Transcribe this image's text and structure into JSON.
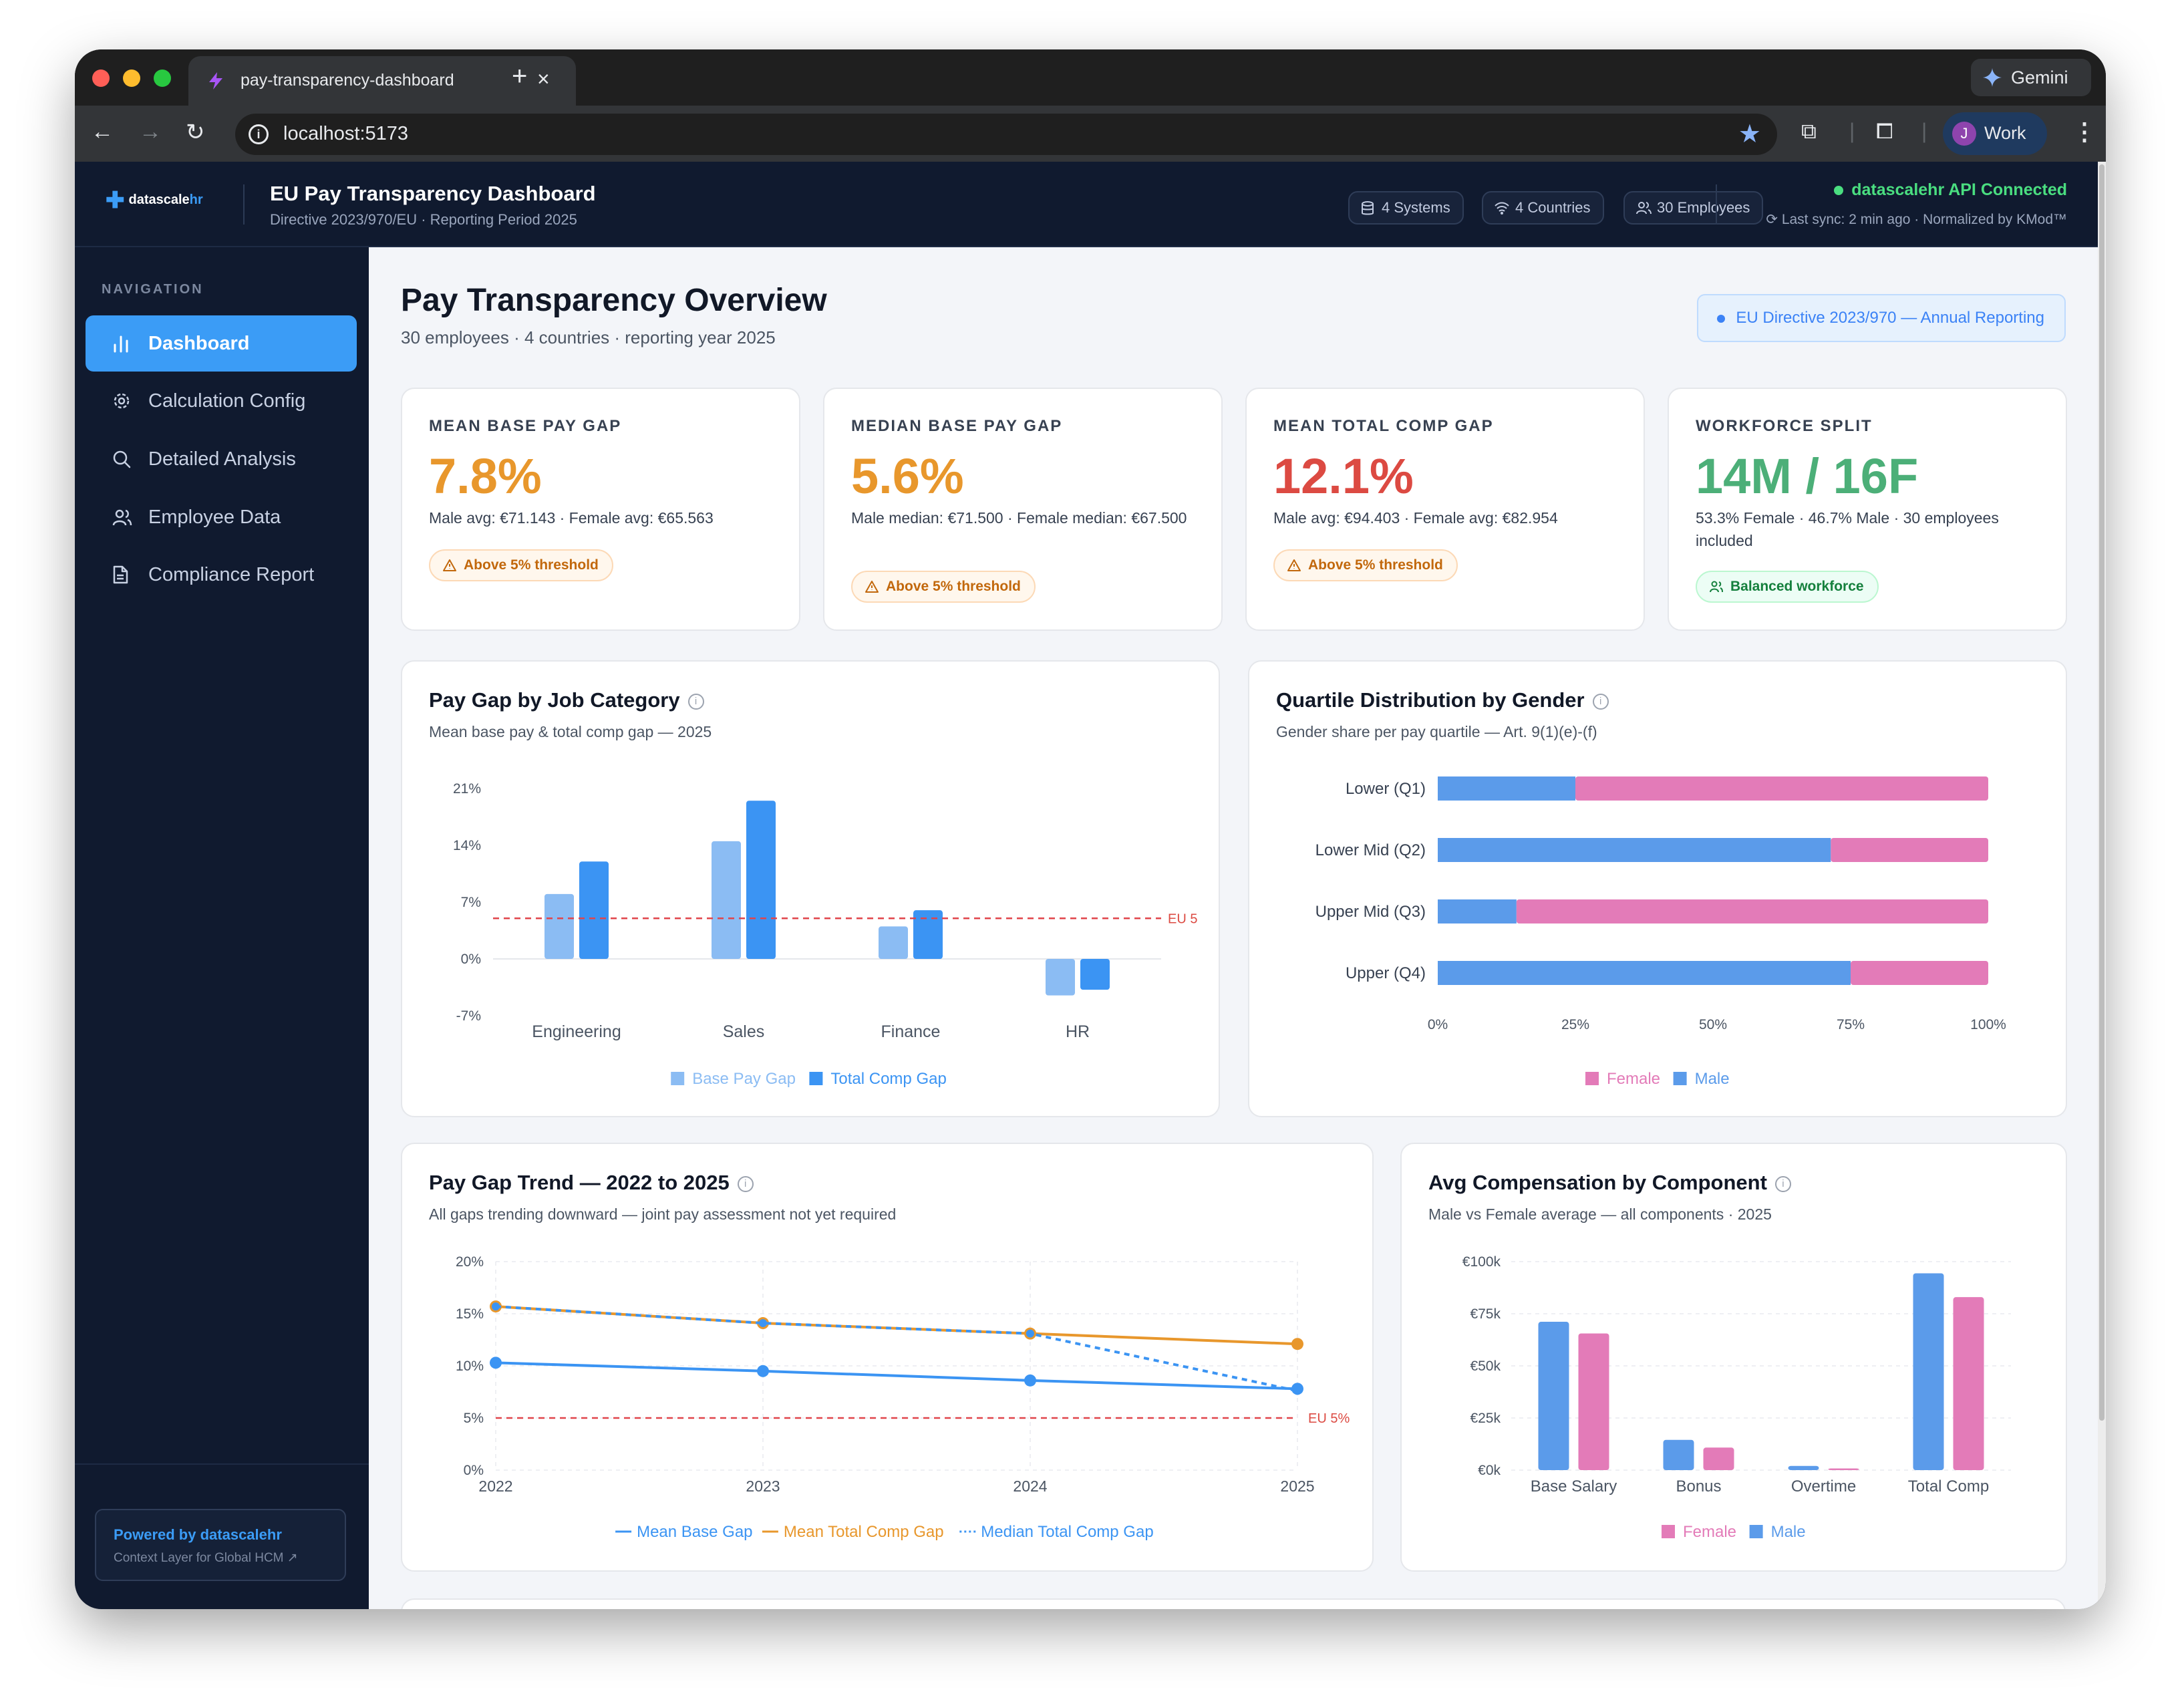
{
  "browser": {
    "tab_title": "pay-transparency-dashboard",
    "url": "localhost:5173",
    "gemini_label": "Gemini",
    "profile_initial": "J",
    "profile_label": "Work"
  },
  "header": {
    "brand_prefix": "datascale",
    "brand_suffix": "hr",
    "title": "EU Pay Transparency Dashboard",
    "subtitle": "Directive 2023/970/EU · Reporting Period 2025",
    "chips": [
      "4 Systems",
      "4 Countries",
      "30 Employees"
    ],
    "api_status": "datascalehr API Connected",
    "sync_text": "Last sync: 2 min ago · Normalized by KMod™",
    "colors": {
      "api_ok": "#4ade80",
      "accent": "#3b9cf6"
    }
  },
  "sidebar": {
    "section": "NAVIGATION",
    "items": [
      {
        "label": "Dashboard",
        "icon": "bar-chart-icon",
        "active": true
      },
      {
        "label": "Calculation Config",
        "icon": "gear-icon",
        "active": false
      },
      {
        "label": "Detailed Analysis",
        "icon": "search-icon",
        "active": false
      },
      {
        "label": "Employee Data",
        "icon": "users-icon",
        "active": false
      },
      {
        "label": "Compliance Report",
        "icon": "document-icon",
        "active": false
      }
    ],
    "powered_by": "Powered by datascalehr",
    "powered_sub": "Context Layer for Global HCM"
  },
  "main": {
    "title": "Pay Transparency Overview",
    "subtitle": "30 employees · 4 countries · reporting year 2025",
    "directive_badge": "EU Directive 2023/970 — Annual Reporting"
  },
  "kpis": [
    {
      "label": "MEAN BASE PAY GAP",
      "value": "7.8%",
      "desc": "Male avg: €71.143 · Female avg: €65.563",
      "badge": "Above 5% threshold",
      "tone": "warn",
      "color": "#e8972c"
    },
    {
      "label": "MEDIAN BASE PAY GAP",
      "value": "5.6%",
      "desc": "Male median: €71.500 · Female median: €67.500",
      "badge": "Above 5% threshold",
      "tone": "warn",
      "color": "#e8972c"
    },
    {
      "label": "MEAN TOTAL COMP GAP",
      "value": "12.1%",
      "desc": "Male avg: €94.403 · Female avg: €82.954",
      "badge": "Above 5% threshold",
      "tone": "warn",
      "color": "#dc4a42"
    },
    {
      "label": "WORKFORCE SPLIT",
      "value": "14M / 16F",
      "desc": "53.3% Female · 46.7% Male · 30 employees included",
      "badge": "Balanced workforce",
      "tone": "ok",
      "color": "#4caf78"
    }
  ],
  "cards": {
    "job_category": {
      "title": "Pay Gap by Job Category",
      "subtitle": "Mean base pay & total comp gap — 2025"
    },
    "quartile": {
      "title": "Quartile Distribution by Gender",
      "subtitle": "Gender share per pay quartile — Art. 9(1)(e)-(f)"
    },
    "trend": {
      "title": "Pay Gap Trend — 2022 to 2025",
      "subtitle": "All gaps trending downward — joint pay assessment not yet required"
    },
    "component": {
      "title": "Avg Compensation by Component",
      "subtitle": "Male vs Female average — all components · 2025"
    }
  },
  "chart_data": [
    {
      "id": "job_category",
      "type": "bar",
      "categories": [
        "Engineering",
        "Sales",
        "Finance",
        "HR"
      ],
      "series": [
        {
          "name": "Base Pay Gap",
          "values": [
            8.0,
            14.5,
            4.0,
            -4.5
          ],
          "color": "#8bbcf3"
        },
        {
          "name": "Total Comp Gap",
          "values": [
            12.0,
            19.5,
            6.0,
            -3.8
          ],
          "color": "#3b94f3"
        }
      ],
      "yticks": [
        "21%",
        "14%",
        "7%",
        "0%",
        "-7%"
      ],
      "ylim": [
        -7,
        21
      ],
      "threshold": {
        "value": 5,
        "label": "EU 5"
      },
      "legend_position": "bottom"
    },
    {
      "id": "quartile",
      "type": "bar",
      "orientation": "horizontal",
      "stacked": true,
      "categories": [
        "Lower (Q1)",
        "Lower Mid (Q2)",
        "Upper Mid (Q3)",
        "Upper (Q4)"
      ],
      "series": [
        {
          "name": "Male",
          "values": [
            25,
            71.4,
            14.3,
            75
          ],
          "color": "#5b9bea"
        },
        {
          "name": "Female",
          "values": [
            75,
            28.6,
            85.7,
            25
          ],
          "color": "#e37bb8"
        }
      ],
      "xticks": [
        "0%",
        "25%",
        "50%",
        "75%",
        "100%"
      ],
      "xlim": [
        0,
        100
      ],
      "legend": [
        "Female",
        "Male"
      ],
      "legend_position": "bottom"
    },
    {
      "id": "trend",
      "type": "line",
      "x": [
        "2022",
        "2023",
        "2024",
        "2025"
      ],
      "series": [
        {
          "name": "Mean Base Gap",
          "values": [
            10.3,
            9.5,
            8.6,
            7.8
          ],
          "color": "#3b94f3",
          "style": "solid"
        },
        {
          "name": "Mean Total Comp Gap",
          "values": [
            15.7,
            14.1,
            13.1,
            12.1
          ],
          "color": "#e8972c",
          "style": "solid"
        },
        {
          "name": "Median Total Comp Gap",
          "values": [
            15.7,
            14.1,
            13.1,
            7.6
          ],
          "color": "#3b94f3",
          "style": "dotted"
        }
      ],
      "yticks": [
        "20%",
        "15%",
        "10%",
        "5%",
        "0%"
      ],
      "ylim": [
        0,
        20
      ],
      "threshold": {
        "value": 5,
        "label": "EU 5%"
      },
      "grid": true,
      "legend_position": "bottom"
    },
    {
      "id": "component",
      "type": "bar",
      "categories": [
        "Base Salary",
        "Bonus",
        "Overtime",
        "Total Comp"
      ],
      "series": [
        {
          "name": "Male",
          "values": [
            71143,
            14500,
            2000,
            94403
          ],
          "color": "#5b9bea"
        },
        {
          "name": "Female",
          "values": [
            65563,
            10800,
            800,
            82954
          ],
          "color": "#e37bb8"
        }
      ],
      "yticks": [
        "€100k",
        "€75k",
        "€50k",
        "€25k",
        "€0k"
      ],
      "ylim": [
        0,
        100000
      ],
      "legend": [
        "Female",
        "Male"
      ],
      "grid": true,
      "legend_position": "bottom"
    }
  ]
}
